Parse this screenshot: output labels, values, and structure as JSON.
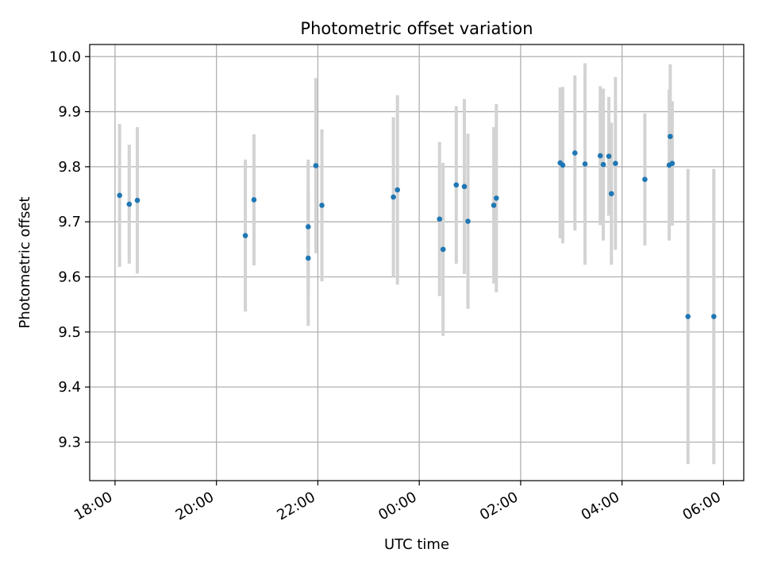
{
  "chart_data": {
    "type": "scatter",
    "title": "Photometric offset variation",
    "xlabel": "UTC time",
    "ylabel": "Photometric offset",
    "grid": true,
    "x_unit": "hours since 18:00 UTC",
    "xlim": [
      -0.5,
      12.4
    ],
    "ylim": [
      9.23,
      10.022
    ],
    "x_ticks": [
      {
        "value": 0,
        "label": "18:00"
      },
      {
        "value": 2,
        "label": "20:00"
      },
      {
        "value": 4,
        "label": "22:00"
      },
      {
        "value": 6,
        "label": "00:00"
      },
      {
        "value": 8,
        "label": "02:00"
      },
      {
        "value": 10,
        "label": "04:00"
      },
      {
        "value": 12,
        "label": "06:00"
      }
    ],
    "y_ticks": [
      {
        "value": 9.3,
        "label": "9.3"
      },
      {
        "value": 9.4,
        "label": "9.4"
      },
      {
        "value": 9.5,
        "label": "9.5"
      },
      {
        "value": 9.6,
        "label": "9.6"
      },
      {
        "value": 9.7,
        "label": "9.7"
      },
      {
        "value": 9.8,
        "label": "9.8"
      },
      {
        "value": 9.9,
        "label": "9.9"
      },
      {
        "value": 10.0,
        "label": "10.0"
      }
    ],
    "points": [
      {
        "x": 0.09,
        "y": 9.748,
        "err": 0.13
      },
      {
        "x": 0.28,
        "y": 9.732,
        "err": 0.108
      },
      {
        "x": 0.44,
        "y": 9.739,
        "err": 0.133
      },
      {
        "x": 2.57,
        "y": 9.675,
        "err": 0.138
      },
      {
        "x": 2.74,
        "y": 9.74,
        "err": 0.119
      },
      {
        "x": 3.81,
        "y": 9.691,
        "err": 0.122
      },
      {
        "x": 3.81,
        "y": 9.634,
        "err": 0.123
      },
      {
        "x": 3.96,
        "y": 9.802,
        "err": 0.159
      },
      {
        "x": 4.08,
        "y": 9.73,
        "err": 0.138
      },
      {
        "x": 5.49,
        "y": 9.745,
        "err": 0.145
      },
      {
        "x": 5.57,
        "y": 9.758,
        "err": 0.172
      },
      {
        "x": 6.4,
        "y": 9.705,
        "err": 0.14
      },
      {
        "x": 6.47,
        "y": 9.65,
        "err": 0.157
      },
      {
        "x": 6.73,
        "y": 9.767,
        "err": 0.143
      },
      {
        "x": 6.89,
        "y": 9.764,
        "err": 0.159
      },
      {
        "x": 6.96,
        "y": 9.701,
        "err": 0.159
      },
      {
        "x": 7.47,
        "y": 9.73,
        "err": 0.142
      },
      {
        "x": 7.52,
        "y": 9.743,
        "err": 0.171
      },
      {
        "x": 8.78,
        "y": 9.807,
        "err": 0.137
      },
      {
        "x": 8.83,
        "y": 9.803,
        "err": 0.142
      },
      {
        "x": 9.07,
        "y": 9.825,
        "err": 0.141
      },
      {
        "x": 9.27,
        "y": 9.805,
        "err": 0.183
      },
      {
        "x": 9.57,
        "y": 9.82,
        "err": 0.126
      },
      {
        "x": 9.63,
        "y": 9.804,
        "err": 0.138
      },
      {
        "x": 9.74,
        "y": 9.819,
        "err": 0.108
      },
      {
        "x": 9.79,
        "y": 9.751,
        "err": 0.129
      },
      {
        "x": 9.87,
        "y": 9.806,
        "err": 0.157
      },
      {
        "x": 10.45,
        "y": 9.777,
        "err": 0.12
      },
      {
        "x": 10.93,
        "y": 9.803,
        "err": 0.137
      },
      {
        "x": 10.95,
        "y": 9.855,
        "err": 0.131
      },
      {
        "x": 10.99,
        "y": 9.806,
        "err": 0.113
      },
      {
        "x": 11.3,
        "y": 9.528,
        "err": 0.268
      },
      {
        "x": 11.81,
        "y": 9.528,
        "err": 0.268
      }
    ],
    "colors": {
      "point": "#1f77b4",
      "errorbar": "#d3d3d3",
      "grid": "#b0b0b0",
      "axis": "#000000",
      "background": "#ffffff"
    }
  }
}
